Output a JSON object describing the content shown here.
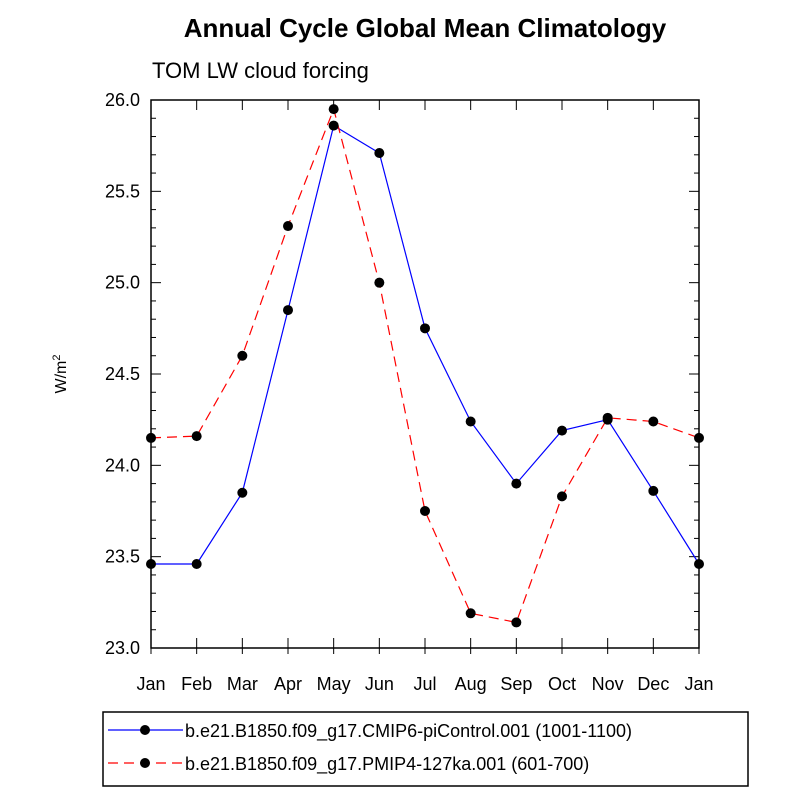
{
  "chart_data": {
    "type": "line",
    "title": "Annual Cycle Global Mean Climatology",
    "subtitle": "TOM LW cloud forcing",
    "ylabel": "W/m",
    "ylabel_sup": "2",
    "categories": [
      "Jan",
      "Feb",
      "Mar",
      "Apr",
      "May",
      "Jun",
      "Jul",
      "Aug",
      "Sep",
      "Oct",
      "Nov",
      "Dec",
      "Jan"
    ],
    "ylim": [
      23.0,
      26.0
    ],
    "yticks": [
      "23.0",
      "23.5",
      "24.0",
      "24.5",
      "25.0",
      "25.5",
      "26.0"
    ],
    "grid": false,
    "legend_position": "bottom",
    "series": [
      {
        "name": "b.e21.B1850.f09_g17.CMIP6-piControl.001 (1001-1100)",
        "color": "#0000ff",
        "dash": "solid",
        "values": [
          23.46,
          23.46,
          23.85,
          24.85,
          25.86,
          25.71,
          24.75,
          24.24,
          23.9,
          24.19,
          24.25,
          23.86,
          23.46
        ]
      },
      {
        "name": "b.e21.B1850.f09_g17.PMIP4-127ka.001 (601-700)",
        "color": "#ff0000",
        "dash": "dashed",
        "values": [
          24.15,
          24.16,
          24.6,
          25.31,
          25.95,
          25.0,
          23.75,
          23.19,
          23.14,
          23.83,
          24.26,
          24.24,
          24.15
        ]
      }
    ]
  }
}
